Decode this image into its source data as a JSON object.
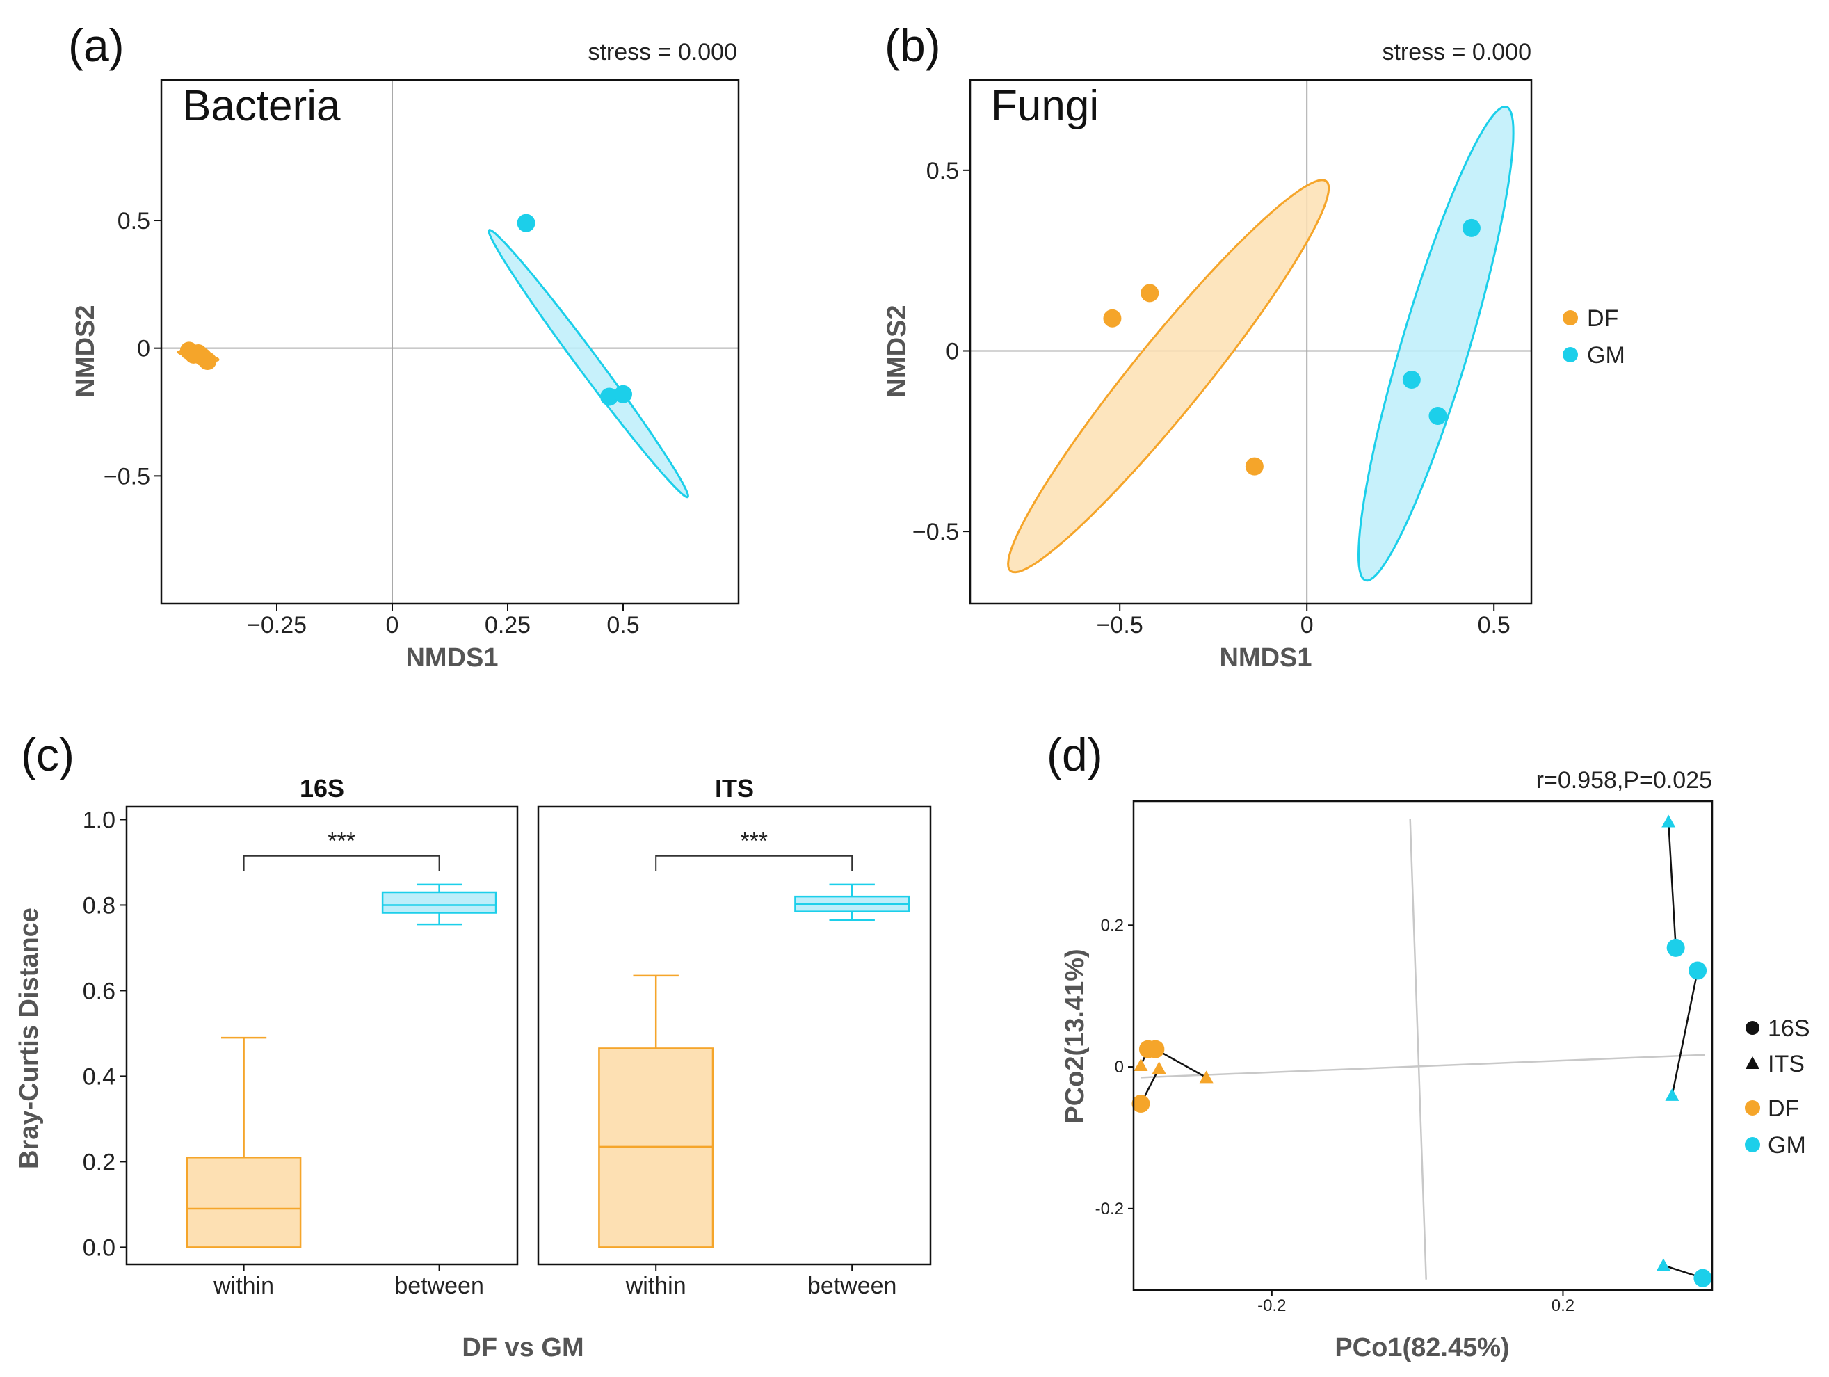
{
  "colors": {
    "DF": "#f5a52a",
    "GM": "#1ccfea",
    "DF_fill": "#fde0b3",
    "GM_fill": "#bdeefa",
    "line": "#111111",
    "ref": "#a9a9a9"
  },
  "legend_top": {
    "items": [
      "DF",
      "GM"
    ]
  },
  "legend_bottom": {
    "shapes": [
      "16S",
      "ITS"
    ],
    "groups": [
      "DF",
      "GM"
    ]
  },
  "chart_data": [
    {
      "id": "a",
      "type": "scatter",
      "panel_label": "(a)",
      "title": "Bacteria",
      "annotation": "stress = 0.000",
      "xlabel": "NMDS1",
      "ylabel": "NMDS2",
      "xlim": [
        -0.5,
        0.75
      ],
      "ylim": [
        -1.0,
        1.05
      ],
      "xticks": [
        -0.25,
        0,
        0.25,
        0.5
      ],
      "xtick_labels": [
        "−0.25",
        "0",
        "0.25",
        "0.5"
      ],
      "yticks": [
        -0.5,
        0,
        0.5
      ],
      "ytick_labels": [
        "−0.5",
        "0",
        "0.5"
      ],
      "series": [
        {
          "name": "DF",
          "points": [
            [
              -0.44,
              -0.01
            ],
            [
              -0.43,
              -0.025
            ],
            [
              -0.42,
              -0.02
            ],
            [
              -0.41,
              -0.035
            ],
            [
              -0.4,
              -0.05
            ]
          ]
        },
        {
          "name": "GM",
          "points": [
            [
              0.29,
              0.49
            ],
            [
              0.47,
              -0.19
            ],
            [
              0.5,
              -0.18
            ]
          ]
        }
      ],
      "ellipses": [
        {
          "group": "DF",
          "cx": -0.42,
          "cy": -0.03,
          "rx": 0.046,
          "ry": 0.011,
          "angle": -20
        },
        {
          "group": "GM",
          "cx": 0.425,
          "cy": -0.06,
          "rx": 0.565,
          "ry": 0.026,
          "angle": -67.7
        }
      ]
    },
    {
      "id": "b",
      "type": "scatter",
      "panel_label": "(b)",
      "title": "Fungi",
      "annotation": "stress = 0.000",
      "xlabel": "NMDS1",
      "ylabel": "NMDS2",
      "xlim": [
        -0.9,
        0.6
      ],
      "ylim": [
        -0.7,
        0.75
      ],
      "xticks": [
        -0.5,
        0,
        0.5
      ],
      "xtick_labels": [
        "−0.5",
        "0",
        "0.5"
      ],
      "yticks": [
        -0.5,
        0,
        0.5
      ],
      "ytick_labels": [
        "−0.5",
        "0",
        "0.5"
      ],
      "series": [
        {
          "name": "DF",
          "points": [
            [
              -0.52,
              0.09
            ],
            [
              -0.42,
              0.16
            ],
            [
              -0.14,
              -0.32
            ]
          ]
        },
        {
          "name": "GM",
          "points": [
            [
              0.28,
              -0.08
            ],
            [
              0.35,
              -0.18
            ],
            [
              0.44,
              0.34
            ]
          ]
        }
      ],
      "ellipses": [
        {
          "group": "DF",
          "cx": -0.37,
          "cy": -0.07,
          "rx": 0.685,
          "ry": 0.097,
          "angle": 52
        },
        {
          "group": "GM",
          "cx": 0.345,
          "cy": 0.02,
          "rx": 0.682,
          "ry": 0.09,
          "angle": 74
        }
      ]
    },
    {
      "id": "c",
      "type": "box",
      "panel_label": "(c)",
      "ylabel": "Bray-Curtis Distance",
      "xlabel": "DF vs GM",
      "ylim": [
        -0.04,
        1.03
      ],
      "yticks": [
        0.0,
        0.2,
        0.4,
        0.6,
        0.8,
        1.0
      ],
      "ytick_labels": [
        "0.0",
        "0.2",
        "0.4",
        "0.6",
        "0.8",
        "1.0"
      ],
      "facets": [
        {
          "title": "16S",
          "significance": "***",
          "categories": [
            "within",
            "between"
          ],
          "boxes": [
            {
              "group": "DF",
              "whisker_low": 0.0,
              "q1": 0.0,
              "median": 0.09,
              "q3": 0.21,
              "whisker_high": 0.49
            },
            {
              "group": "GM",
              "whisker_low": 0.755,
              "q1": 0.782,
              "median": 0.8,
              "q3": 0.83,
              "whisker_high": 0.848
            }
          ]
        },
        {
          "title": "ITS",
          "significance": "***",
          "categories": [
            "within",
            "between"
          ],
          "boxes": [
            {
              "group": "DF",
              "whisker_low": 0.0,
              "q1": 0.0,
              "median": 0.235,
              "q3": 0.465,
              "whisker_high": 0.635
            },
            {
              "group": "GM",
              "whisker_low": 0.765,
              "q1": 0.785,
              "median": 0.802,
              "q3": 0.82,
              "whisker_high": 0.848
            }
          ]
        }
      ]
    },
    {
      "id": "d",
      "type": "scatter",
      "panel_label": "(d)",
      "annotation": "r=0.958,P=0.025",
      "xlabel": "PCo1(82.45%)",
      "ylabel": "PCo2(13.41%)",
      "xlim": [
        -0.39,
        0.405
      ],
      "ylim": [
        -0.315,
        0.375
      ],
      "xticks": [
        -0.2,
        0.2
      ],
      "xtick_labels": [
        "-0.2",
        "0.2"
      ],
      "yticks": [
        -0.2,
        0,
        0.2
      ],
      "ytick_labels": [
        "-0.2",
        "0",
        "0.2"
      ],
      "ref_lines": [
        [
          [
            -0.38,
            -0.015
          ],
          [
            0.395,
            0.017
          ]
        ],
        [
          [
            -0.01,
            0.35
          ],
          [
            0.012,
            -0.3
          ]
        ]
      ],
      "pairs": [
        {
          "group": "DF",
          "a": [
            -0.37,
            0.025
          ],
          "b": [
            -0.38,
            0.002
          ]
        },
        {
          "group": "DF",
          "a": [
            -0.36,
            0.025
          ],
          "b": [
            -0.29,
            -0.015
          ]
        },
        {
          "group": "DF",
          "a": [
            -0.38,
            -0.052
          ],
          "b": [
            -0.355,
            -0.002
          ]
        },
        {
          "group": "GM",
          "a": [
            0.355,
            0.168
          ],
          "b": [
            0.345,
            0.346
          ]
        },
        {
          "group": "GM",
          "a": [
            0.385,
            0.136
          ],
          "b": [
            0.35,
            -0.04
          ]
        },
        {
          "group": "GM",
          "a": [
            0.392,
            -0.298
          ],
          "b": [
            0.338,
            -0.28
          ]
        }
      ]
    }
  ]
}
